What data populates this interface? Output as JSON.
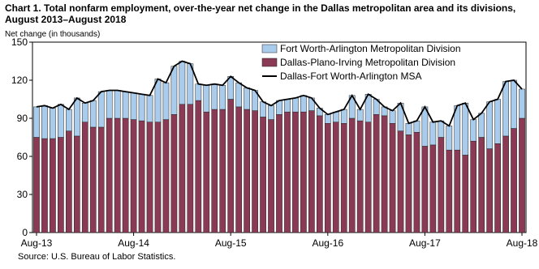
{
  "chart_data": {
    "type": "bar",
    "stacked": true,
    "title": "Chart 1. Total nonfarm employment, over-the-year net change in the Dallas metropolitan area and its divisions,",
    "subtitle": "August 2013–August 2018",
    "y_label": "Net change (in thousands)",
    "source": "Source: U.S. Bureau of Labor Statistics.",
    "categories": [
      "Aug-13",
      null,
      null,
      null,
      null,
      null,
      null,
      null,
      null,
      null,
      null,
      null,
      "Aug-14",
      null,
      null,
      null,
      null,
      null,
      null,
      null,
      null,
      null,
      null,
      null,
      "Aug-15",
      null,
      null,
      null,
      null,
      null,
      null,
      null,
      null,
      null,
      null,
      null,
      "Aug-16",
      null,
      null,
      null,
      null,
      null,
      null,
      null,
      null,
      null,
      null,
      null,
      "Aug-17",
      null,
      null,
      null,
      null,
      null,
      null,
      null,
      null,
      null,
      null,
      null,
      "Aug-18"
    ],
    "series": [
      {
        "name": "Dallas-Plano-Irving Metropolitan Division",
        "color": "#8b3a55",
        "values": [
          75,
          74,
          74,
          75,
          80,
          76,
          87,
          83,
          83,
          90,
          90,
          90,
          89,
          88,
          87,
          87,
          89,
          93,
          101,
          101,
          104,
          95,
          97,
          97,
          105,
          99,
          97,
          96,
          91,
          89,
          93,
          95,
          95,
          95,
          96,
          92,
          86,
          87,
          86,
          90,
          88,
          87,
          93,
          92,
          86,
          80,
          77,
          79,
          68,
          69,
          75,
          65,
          65,
          61,
          72,
          75,
          66,
          70,
          76,
          82,
          90
        ]
      },
      {
        "name": "Fort Worth-Arlington Metropolitan Division",
        "color": "#a9cbec",
        "values": [
          24,
          26,
          24,
          26,
          17,
          30,
          15,
          21,
          28,
          22,
          22,
          21,
          21,
          21,
          21,
          34,
          29,
          38,
          34,
          32,
          13,
          21,
          20,
          19,
          18,
          19,
          17,
          16,
          12,
          11,
          11,
          10,
          11,
          13,
          10,
          6,
          7,
          8,
          11,
          18,
          9,
          22,
          12,
          7,
          10,
          22,
          9,
          9,
          31,
          18,
          13,
          19,
          35,
          41,
          17,
          19,
          37,
          35,
          43,
          38,
          23
        ]
      },
      {
        "name": "Dallas-Fort Worth-Arlington MSA",
        "color": "#000000",
        "type": "line",
        "values": [
          99,
          100,
          98,
          101,
          97,
          106,
          102,
          104,
          111,
          112,
          112,
          111,
          110,
          109,
          108,
          121,
          118,
          131,
          135,
          133,
          117,
          116,
          117,
          116,
          123,
          118,
          114,
          112,
          103,
          100,
          104,
          105,
          106,
          108,
          106,
          98,
          93,
          95,
          97,
          108,
          97,
          109,
          105,
          99,
          96,
          102,
          86,
          88,
          99,
          87,
          88,
          84,
          100,
          102,
          89,
          94,
          103,
          105,
          119,
          120,
          113
        ]
      }
    ],
    "ylim": [
      0,
      150
    ],
    "yticks": [
      0,
      30,
      60,
      90,
      120,
      150
    ],
    "grid": false,
    "legend": "top-left"
  }
}
